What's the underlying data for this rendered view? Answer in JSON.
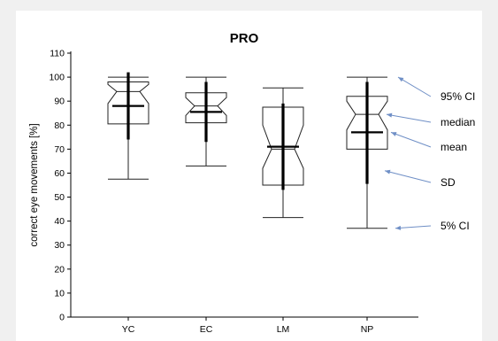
{
  "chart_data": {
    "type": "boxplot",
    "title": "PRO",
    "ylabel": "correct eye movements [%]",
    "xlabel": "",
    "ylim": [
      0,
      110
    ],
    "yticks": [
      0,
      10,
      20,
      30,
      40,
      50,
      60,
      70,
      80,
      90,
      100,
      110
    ],
    "ytick_labels": [
      "0",
      "10",
      "20",
      "30",
      "40",
      "50",
      "60",
      "70",
      "80",
      "90",
      "100",
      "110"
    ],
    "categories": [
      "YC",
      "EC",
      "LM",
      "NP"
    ],
    "series": [
      {
        "category": "YC",
        "whisker_low": 57.5,
        "q1": 80.5,
        "median": 94,
        "q3": 98,
        "whisker_high": 100,
        "notch_low": 89,
        "notch_high": 97,
        "mean": 88,
        "sd_low": 74,
        "sd_high": 102
      },
      {
        "category": "EC",
        "whisker_low": 63,
        "q1": 81,
        "median": 88,
        "q3": 93.5,
        "whisker_high": 100,
        "notch_low": 84,
        "notch_high": 91.5,
        "mean": 85.5,
        "sd_low": 73,
        "sd_high": 98
      },
      {
        "category": "LM",
        "whisker_low": 41.5,
        "q1": 55,
        "median": 70,
        "q3": 87.5,
        "whisker_high": 95.5,
        "notch_low": 62,
        "notch_high": 80,
        "mean": 71,
        "sd_low": 53,
        "sd_high": 89
      },
      {
        "category": "NP",
        "whisker_low": 37,
        "q1": 70,
        "median": 84.5,
        "q3": 92,
        "whisker_high": 100,
        "notch_low": 78,
        "notch_high": 90,
        "mean": 77,
        "sd_low": 55.5,
        "sd_high": 98
      }
    ],
    "annotations": [
      {
        "text": "95% CI",
        "points_to_value": 100
      },
      {
        "text": "median",
        "points_to_value": 84.5
      },
      {
        "text": "mean",
        "points_to_value": 77
      },
      {
        "text": "SD",
        "points_to_value": 61
      },
      {
        "text": "5% CI",
        "points_to_value": 37
      }
    ],
    "grid": false,
    "legend": "none"
  }
}
